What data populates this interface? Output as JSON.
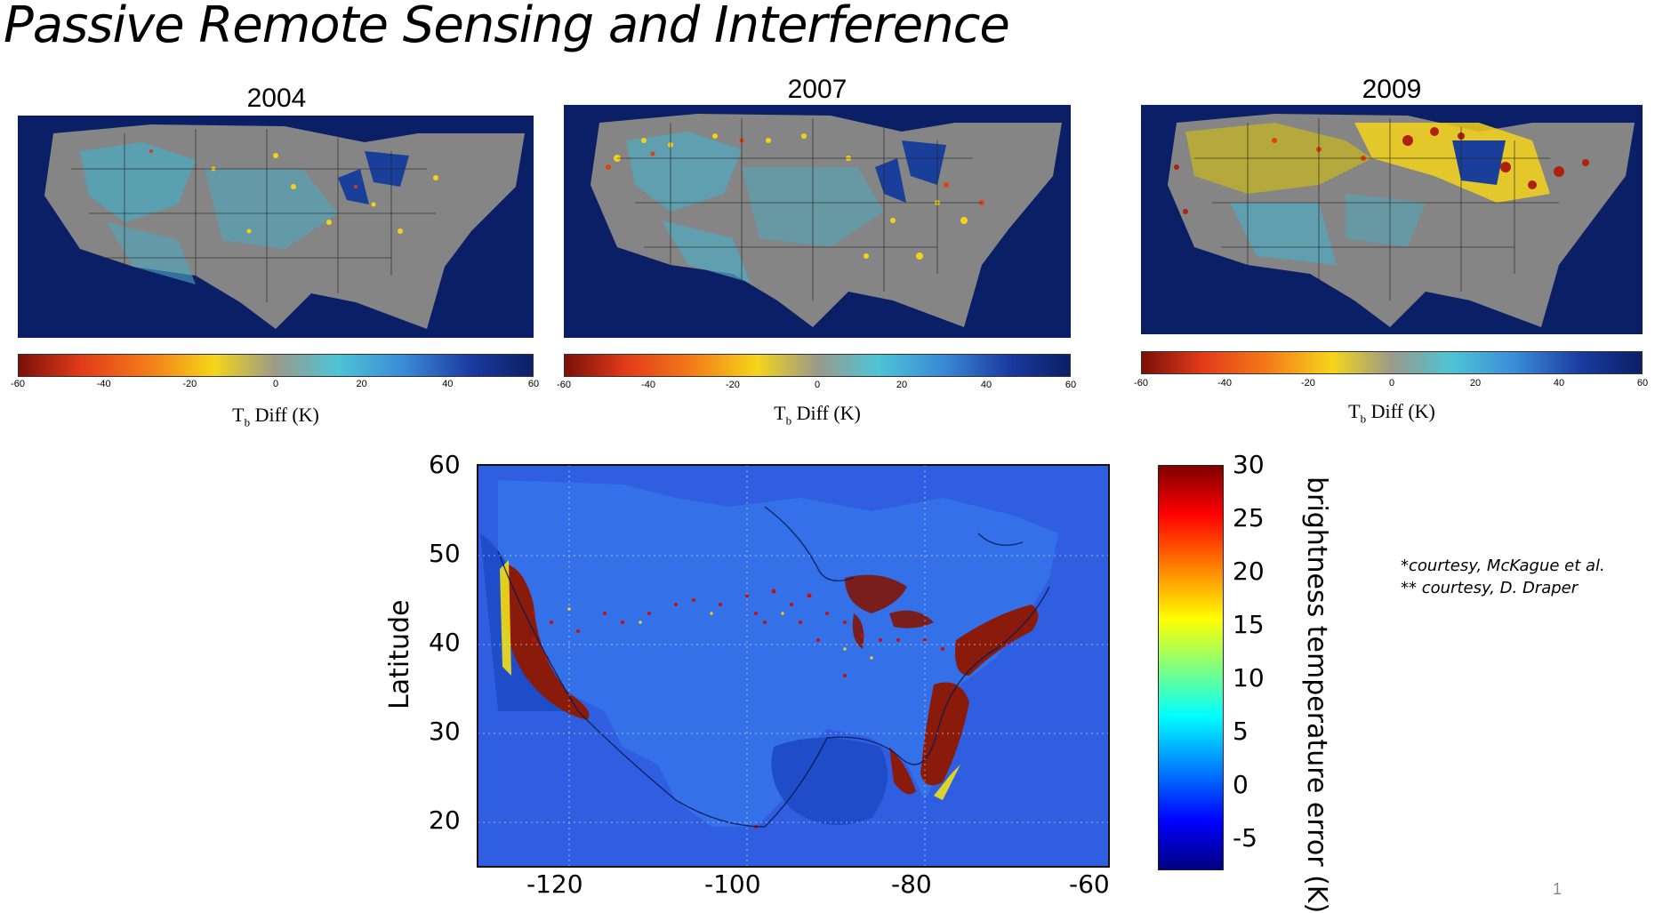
{
  "slide": {
    "title": "Passive Remote Sensing and Interference",
    "page_number": "1"
  },
  "panels": [
    {
      "year": "2004",
      "unit_label_main": "T",
      "unit_label_sub": "b",
      "unit_label_rest": " Diff (K)"
    },
    {
      "year": "2007",
      "unit_label_main": "T",
      "unit_label_sub": "b",
      "unit_label_rest": " Diff (K)"
    },
    {
      "year": "2009",
      "unit_label_main": "T",
      "unit_label_sub": "b",
      "unit_label_rest": " Diff (K)"
    }
  ],
  "small_colorbar": {
    "ticks": [
      "-60",
      "-40",
      "-20",
      "0",
      "20",
      "40",
      "60"
    ],
    "min": -60,
    "max": 60
  },
  "big_map": {
    "ylabel": "Latitude",
    "y_ticks": [
      "60",
      "50",
      "40",
      "30",
      "20"
    ],
    "x_ticks": [
      "-120",
      "-100",
      "-80",
      "-60"
    ],
    "colorbar_label": "brightness temperature error (K)",
    "colorbar_ticks": [
      "30",
      "25",
      "20",
      "15",
      "10",
      "5",
      "0",
      "-5"
    ],
    "colorbar_min": -7,
    "colorbar_max": 30
  },
  "credits": {
    "line1": "*courtesy, McKague et al.",
    "line2": "** courtesy, D. Draper"
  },
  "colors": {
    "ocean_dark": "#0b1f66",
    "land_gray": "#858585",
    "land_teal": "#4ea9c0",
    "rfi_yellow": "#f4d21a",
    "rfi_red": "#b0200e",
    "big_bg_blue": "#2f5fe0"
  }
}
